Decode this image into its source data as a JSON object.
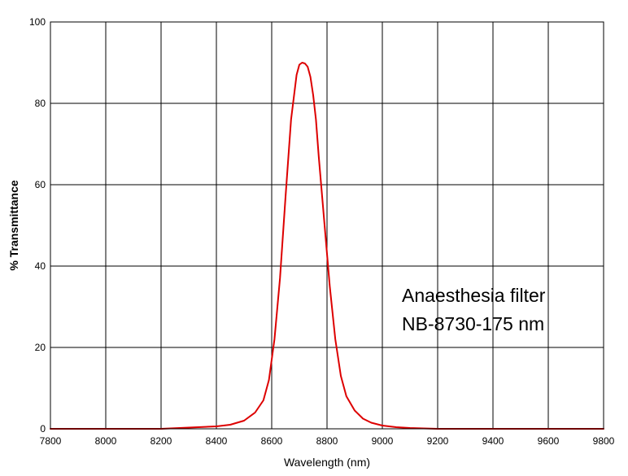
{
  "chart_data": {
    "type": "line",
    "title": "",
    "xlabel": "Wavelength (nm)",
    "ylabel": "% Transmittance",
    "xlim": [
      7800,
      9800
    ],
    "ylim": [
      0,
      100
    ],
    "x_ticks": [
      "7800",
      "8000",
      "8200",
      "8400",
      "8600",
      "8800",
      "9000",
      "9200",
      "9400",
      "9600",
      "9800"
    ],
    "y_ticks": [
      "0",
      "20",
      "40",
      "60",
      "80",
      "100"
    ],
    "grid": true,
    "annotation_lines": [
      "Anaesthesia filter",
      "NB-8730-175 nm"
    ],
    "series": [
      {
        "color": "#dd0000",
        "x": [
          7800,
          7900,
          8000,
          8100,
          8200,
          8300,
          8400,
          8450,
          8500,
          8540,
          8570,
          8590,
          8610,
          8630,
          8650,
          8670,
          8690,
          8700,
          8710,
          8720,
          8730,
          8740,
          8750,
          8760,
          8770,
          8790,
          8810,
          8830,
          8850,
          8870,
          8900,
          8930,
          8960,
          9000,
          9050,
          9100,
          9200,
          9300,
          9400,
          9500,
          9600,
          9700,
          9800
        ],
        "y": [
          0,
          0,
          0,
          0,
          0,
          0.3,
          0.6,
          1,
          2,
          4,
          7,
          12,
          22,
          37,
          57,
          76,
          87,
          89.5,
          90,
          89.8,
          89,
          86.5,
          82,
          76,
          67,
          51,
          35,
          22,
          13,
          8,
          4.5,
          2.5,
          1.5,
          0.8,
          0.4,
          0.2,
          0,
          0,
          0,
          0,
          0,
          0,
          0
        ]
      }
    ]
  }
}
